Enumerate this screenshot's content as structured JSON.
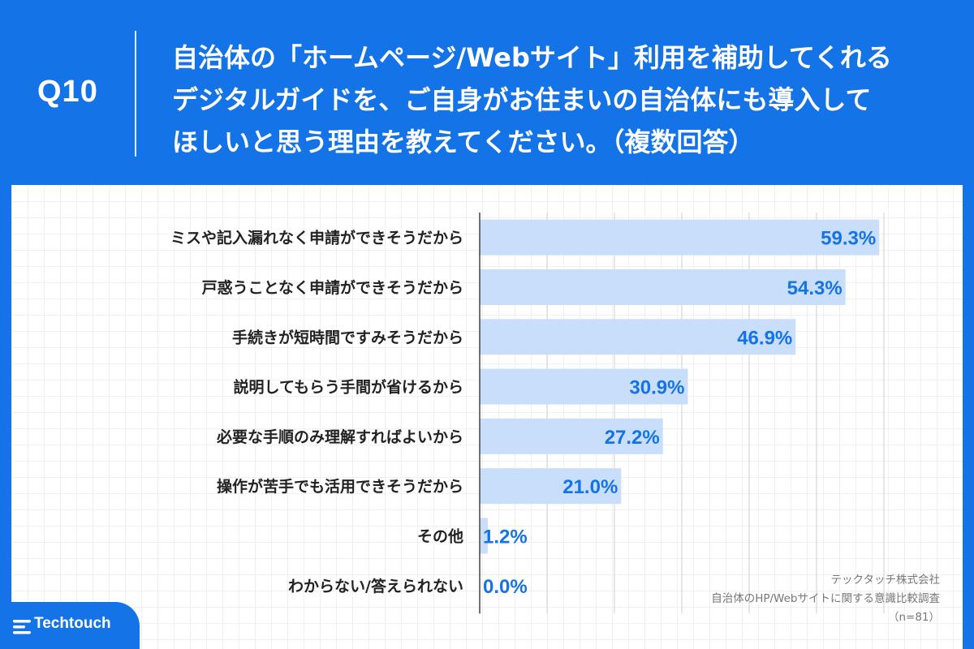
{
  "header": {
    "question_number": "Q10",
    "question_lines": [
      "自治体の「ホームページ/Webサイト」利用を補助してくれる",
      "デジタルガイドを、ご自身がお住まいの自治体にも導入して",
      "ほしいと思う理由を教えてください。（複数回答）"
    ]
  },
  "chart_data": {
    "type": "bar",
    "orientation": "horizontal",
    "categories": [
      "ミスや記入漏れなく申請ができそうだから",
      "戸惑うことなく申請ができそうだから",
      "手続きが短時間ですみそうだから",
      "説明してもらう手間が省けるから",
      "必要な手順のみ理解すればよいから",
      "操作が苦手でも活用できそうだから",
      "その他",
      "わからない/答えられない"
    ],
    "values": [
      59.3,
      54.3,
      46.9,
      30.9,
      27.2,
      21.0,
      1.2,
      0.0
    ],
    "value_labels": [
      "59.3%",
      "54.3%",
      "46.9%",
      "30.9%",
      "27.2%",
      "21.0%",
      "1.2%",
      "0.0%"
    ],
    "xlim": [
      0,
      60
    ],
    "grid": true,
    "bar_color": "#c9defa",
    "label_color": "#1473e6"
  },
  "source": {
    "company": "テックタッチ株式会社",
    "survey": "自治体のHP/Webサイトに関する意識比較調査",
    "sample": "（n=81）"
  },
  "logo": {
    "text": "Techtouch"
  },
  "colors": {
    "brand": "#1473e6"
  }
}
